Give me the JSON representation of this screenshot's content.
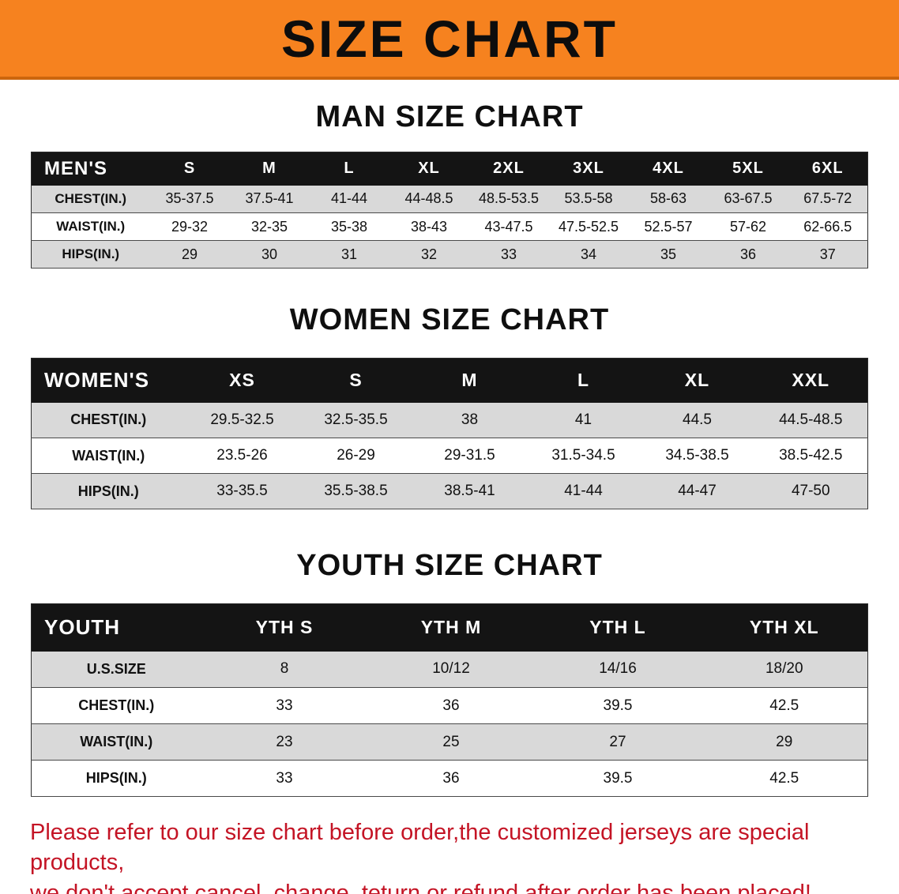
{
  "banner": {
    "title": "SIZE CHART",
    "bg_color": "#f6821f",
    "text_color": "#0d0d0d"
  },
  "men": {
    "heading": "MAN SIZE CHART",
    "header": [
      "MEN'S",
      "S",
      "M",
      "L",
      "XL",
      "2XL",
      "3XL",
      "4XL",
      "5XL",
      "6XL"
    ],
    "rows": [
      [
        "CHEST(IN.)",
        "35-37.5",
        "37.5-41",
        "41-44",
        "44-48.5",
        "48.5-53.5",
        "53.5-58",
        "58-63",
        "63-67.5",
        "67.5-72"
      ],
      [
        "WAIST(IN.)",
        "29-32",
        "32-35",
        "35-38",
        "38-43",
        "43-47.5",
        "47.5-52.5",
        "52.5-57",
        "57-62",
        "62-66.5"
      ],
      [
        "HIPS(IN.)",
        "29",
        "30",
        "31",
        "32",
        "33",
        "34",
        "35",
        "36",
        "37"
      ]
    ]
  },
  "women": {
    "heading": "WOMEN SIZE CHART",
    "header": [
      "WOMEN'S",
      "XS",
      "S",
      "M",
      "L",
      "XL",
      "XXL"
    ],
    "rows": [
      [
        "CHEST(IN.)",
        "29.5-32.5",
        "32.5-35.5",
        "38",
        "41",
        "44.5",
        "44.5-48.5"
      ],
      [
        "WAIST(IN.)",
        "23.5-26",
        "26-29",
        "29-31.5",
        "31.5-34.5",
        "34.5-38.5",
        "38.5-42.5"
      ],
      [
        "HIPS(IN.)",
        "33-35.5",
        "35.5-38.5",
        "38.5-41",
        "41-44",
        "44-47",
        "47-50"
      ]
    ]
  },
  "youth": {
    "heading": "YOUTH SIZE CHART",
    "header": [
      "YOUTH",
      "YTH S",
      "YTH M",
      "YTH L",
      "YTH XL"
    ],
    "rows": [
      [
        "U.S.SIZE",
        "8",
        "10/12",
        "14/16",
        "18/20"
      ],
      [
        "CHEST(IN.)",
        "33",
        "36",
        "39.5",
        "42.5"
      ],
      [
        "WAIST(IN.)",
        "23",
        "25",
        "27",
        "29"
      ],
      [
        "HIPS(IN.)",
        "33",
        "36",
        "39.5",
        "42.5"
      ]
    ]
  },
  "footer": {
    "line1": "Please refer to our size chart before order,the customized jerseys are special products,",
    "line2": "we don't accept cancel, change, teturn or refund after order has been placed!"
  }
}
